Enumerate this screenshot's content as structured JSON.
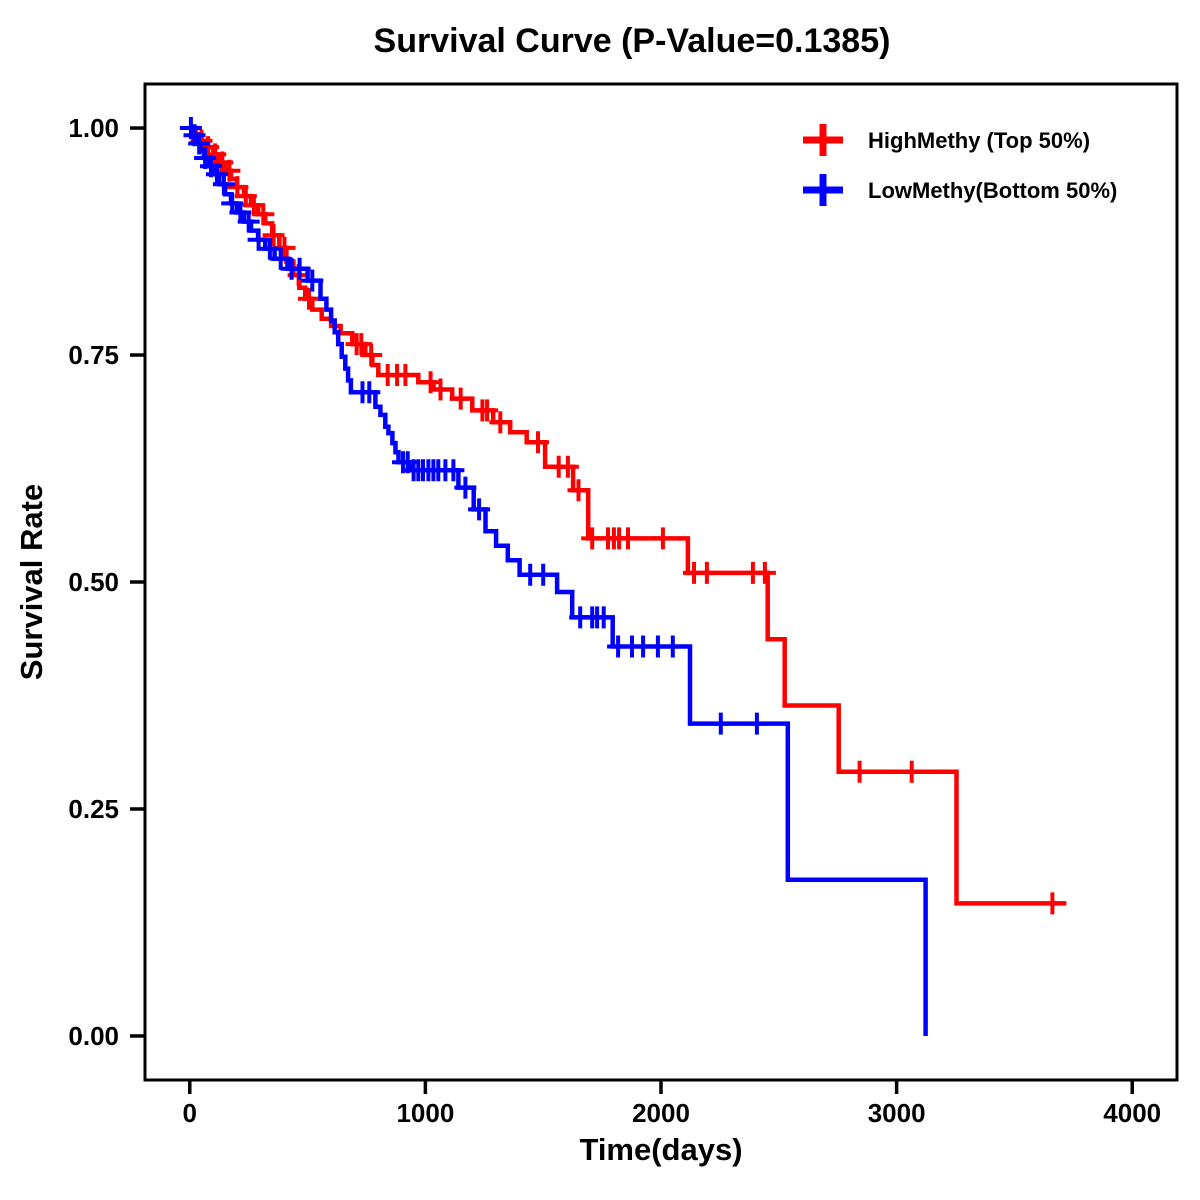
{
  "title": "Survival Curve (P-Value=0.1385)",
  "p_value": "0.1385",
  "chart_data": {
    "type": "line",
    "subtype": "kaplan-meier-step-survival",
    "title": "Survival Curve (P-Value=0.1385)",
    "xlabel": "Time(days)",
    "ylabel": "Survival Rate",
    "grid": false,
    "legend_position": "top-right",
    "xlim": [
      -190,
      4190
    ],
    "ylim": [
      -0.0485,
      1.0485
    ],
    "x_ticks": [
      0,
      1000,
      2000,
      3000,
      4000
    ],
    "x_tick_labels": [
      "0",
      "1000",
      "2000",
      "3000",
      "4000"
    ],
    "y_ticks": [
      0.0,
      0.25,
      0.5,
      0.75,
      1.0
    ],
    "y_tick_labels": [
      "0.00",
      "0.25",
      "0.50",
      "0.75",
      "1.00"
    ],
    "series": [
      {
        "name": "HighMethy (Top 50%)",
        "color": "#FF0000",
        "steps": [
          [
            0,
            1.0
          ],
          [
            25,
            0.993
          ],
          [
            50,
            0.986
          ],
          [
            75,
            0.979
          ],
          [
            100,
            0.971
          ],
          [
            125,
            0.962
          ],
          [
            150,
            0.953
          ],
          [
            175,
            0.944
          ],
          [
            200,
            0.935
          ],
          [
            230,
            0.925
          ],
          [
            260,
            0.915
          ],
          [
            290,
            0.905
          ],
          [
            320,
            0.895
          ],
          [
            350,
            0.882
          ],
          [
            380,
            0.868
          ],
          [
            410,
            0.853
          ],
          [
            440,
            0.838
          ],
          [
            465,
            0.824
          ],
          [
            490,
            0.812
          ],
          [
            520,
            0.8
          ],
          [
            560,
            0.79
          ],
          [
            600,
            0.782
          ],
          [
            640,
            0.774
          ],
          [
            690,
            0.762
          ],
          [
            745,
            0.75
          ],
          [
            775,
            0.739
          ],
          [
            800,
            0.728
          ],
          [
            970,
            0.72
          ],
          [
            1035,
            0.712
          ],
          [
            1114,
            0.702
          ],
          [
            1199,
            0.689
          ],
          [
            1288,
            0.676
          ],
          [
            1360,
            0.665
          ],
          [
            1430,
            0.654
          ],
          [
            1508,
            0.627
          ],
          [
            1627,
            0.601
          ],
          [
            1691,
            0.548
          ],
          [
            2114,
            0.51
          ],
          [
            2453,
            0.437
          ],
          [
            2525,
            0.364
          ],
          [
            2754,
            0.291
          ],
          [
            3254,
            0.146
          ]
        ],
        "end_day": 3720,
        "censor_days": [
          50,
          78,
          108,
          138,
          168,
          202,
          238,
          272,
          312,
          356,
          402,
          462,
          506,
          708,
          728,
          770,
          840,
          880,
          915,
          1022,
          1064,
          1150,
          1242,
          1262,
          1318,
          1478,
          1566,
          1605,
          1650,
          1708,
          1775,
          1800,
          1822,
          1860,
          2008,
          2140,
          2195,
          2390,
          2441,
          2843,
          3064,
          3661
        ]
      },
      {
        "name": "LowMethy(Bottom 50%)",
        "color": "#0000FF",
        "steps": [
          [
            0,
            1.0
          ],
          [
            15,
            0.992
          ],
          [
            30,
            0.983
          ],
          [
            45,
            0.975
          ],
          [
            60,
            0.967
          ],
          [
            80,
            0.958
          ],
          [
            100,
            0.949
          ],
          [
            125,
            0.938
          ],
          [
            150,
            0.927
          ],
          [
            175,
            0.917
          ],
          [
            200,
            0.907
          ],
          [
            230,
            0.897
          ],
          [
            260,
            0.887
          ],
          [
            290,
            0.877
          ],
          [
            320,
            0.867
          ],
          [
            360,
            0.856
          ],
          [
            415,
            0.845
          ],
          [
            500,
            0.832
          ],
          [
            555,
            0.812
          ],
          [
            580,
            0.8
          ],
          [
            600,
            0.788
          ],
          [
            615,
            0.775
          ],
          [
            630,
            0.762
          ],
          [
            645,
            0.748
          ],
          [
            660,
            0.735
          ],
          [
            672,
            0.722
          ],
          [
            684,
            0.709
          ],
          [
            788,
            0.693
          ],
          [
            809,
            0.684
          ],
          [
            830,
            0.671
          ],
          [
            843,
            0.664
          ],
          [
            860,
            0.653
          ],
          [
            873,
            0.643
          ],
          [
            886,
            0.632
          ],
          [
            936,
            0.623
          ],
          [
            1140,
            0.604
          ],
          [
            1205,
            0.58
          ],
          [
            1255,
            0.556
          ],
          [
            1300,
            0.54
          ],
          [
            1350,
            0.524
          ],
          [
            1400,
            0.508
          ],
          [
            1559,
            0.489
          ],
          [
            1623,
            0.461
          ],
          [
            1795,
            0.429
          ],
          [
            2123,
            0.344
          ],
          [
            2538,
            0.172
          ],
          [
            3123,
            0.0
          ]
        ],
        "end_day": 3123,
        "censor_days": [
          5,
          20,
          40,
          65,
          90,
          115,
          145,
          180,
          215,
          250,
          292,
          340,
          386,
          432,
          466,
          520,
          733,
          762,
          905,
          925,
          950,
          970,
          990,
          1013,
          1034,
          1055,
          1085,
          1119,
          1170,
          1228,
          1445,
          1500,
          1657,
          1708,
          1729,
          1757,
          1818,
          1877,
          1924,
          1987,
          2050,
          2254,
          2407
        ]
      }
    ]
  }
}
